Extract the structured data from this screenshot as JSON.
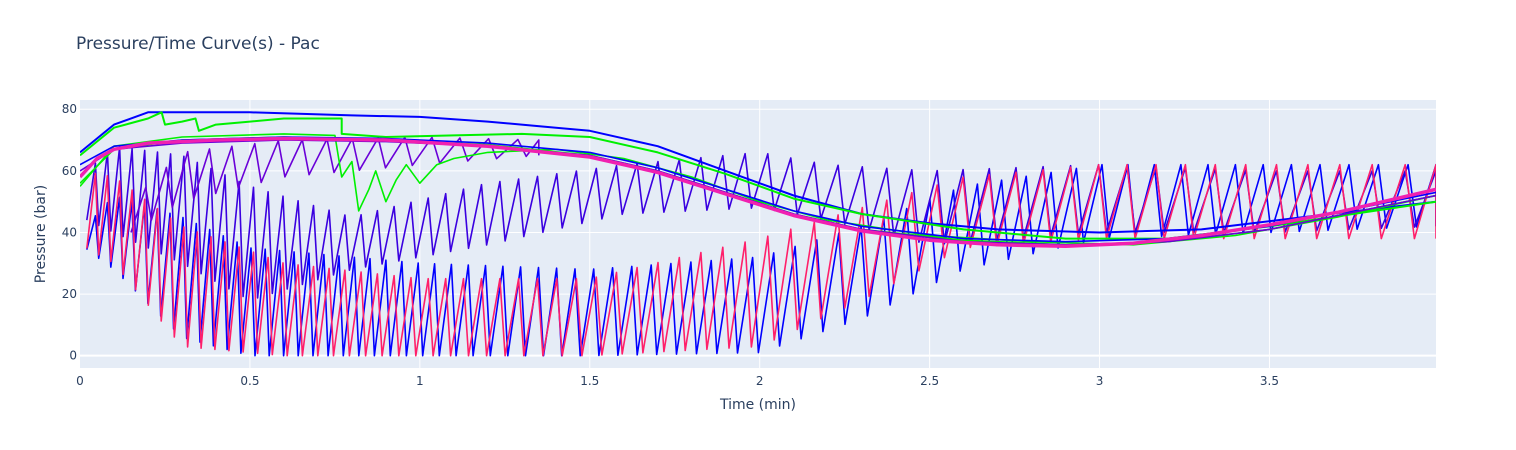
{
  "chart_data": {
    "type": "line",
    "title": "Pressure/Time Curve(s) - Pac",
    "xlabel": "Time (min)",
    "ylabel": "Pressure (bar)",
    "xlim": [
      0,
      3.99
    ],
    "ylim": [
      -4,
      83
    ],
    "xticks": [
      0,
      0.5,
      1,
      1.5,
      2,
      2.5,
      3,
      3.5
    ],
    "xtick_labels": [
      "0",
      "0.5",
      "1",
      "1.5",
      "2",
      "2.5",
      "3",
      "3.5"
    ],
    "yticks": [
      0,
      20,
      40,
      60,
      80
    ],
    "ytick_labels": [
      "0",
      "20",
      "40",
      "60",
      "80"
    ],
    "grid": true,
    "legend": "none",
    "colors": {
      "plot_bg": "#e5ecf6",
      "grid": "#ffffff",
      "text": "#2a3f5f",
      "blue": "#0000ff",
      "indigo": "#3a00e0",
      "violet": "#6a00d8",
      "green": "#00f000",
      "pink": "#ff1f6a",
      "magenta": "#f021b0"
    },
    "series": [
      {
        "color": "#0000ff",
        "width": 2,
        "points": [
          [
            0,
            66
          ],
          [
            0.1,
            75
          ],
          [
            0.2,
            79
          ],
          [
            0.5,
            79
          ],
          [
            0.8,
            78
          ],
          [
            1.0,
            77.5
          ],
          [
            1.2,
            76
          ],
          [
            1.5,
            73
          ],
          [
            1.7,
            68
          ],
          [
            1.9,
            60
          ],
          [
            2.1,
            52
          ],
          [
            2.3,
            46
          ],
          [
            2.5,
            43
          ],
          [
            2.7,
            41
          ],
          [
            3.0,
            40
          ],
          [
            3.3,
            41
          ],
          [
            3.6,
            45
          ],
          [
            3.99,
            50
          ]
        ]
      },
      {
        "color": "#00f000",
        "width": 2,
        "points": [
          [
            0,
            65
          ],
          [
            0.1,
            74
          ],
          [
            0.2,
            77
          ],
          [
            0.24,
            79
          ],
          [
            0.25,
            75
          ],
          [
            0.3,
            76
          ],
          [
            0.34,
            77
          ],
          [
            0.35,
            73
          ],
          [
            0.4,
            75
          ],
          [
            0.5,
            76
          ],
          [
            0.6,
            77
          ],
          [
            0.7,
            77
          ],
          [
            0.77,
            77
          ],
          [
            0.77,
            72
          ],
          [
            0.9,
            71
          ],
          [
            1.1,
            71.5
          ],
          [
            1.3,
            72
          ],
          [
            1.5,
            71
          ],
          [
            1.7,
            66
          ],
          [
            1.9,
            59
          ],
          [
            2.1,
            51
          ],
          [
            2.3,
            46
          ],
          [
            2.6,
            41
          ],
          [
            2.9,
            38
          ],
          [
            3.2,
            38
          ],
          [
            3.5,
            42
          ],
          [
            3.99,
            50
          ]
        ]
      },
      {
        "color": "#00f000",
        "width": 1.6,
        "points": [
          [
            0,
            55
          ],
          [
            0.1,
            68
          ],
          [
            0.3,
            71
          ],
          [
            0.6,
            72
          ],
          [
            0.75,
            71.5
          ],
          [
            0.77,
            58
          ],
          [
            0.8,
            63
          ],
          [
            0.82,
            47
          ],
          [
            0.85,
            54
          ],
          [
            0.87,
            60
          ],
          [
            0.9,
            50
          ],
          [
            0.93,
            57
          ],
          [
            0.96,
            62
          ],
          [
            1.0,
            56
          ],
          [
            1.05,
            62
          ],
          [
            1.1,
            64
          ],
          [
            1.2,
            66
          ],
          [
            1.4,
            67
          ],
          [
            1.6,
            64
          ],
          [
            1.8,
            58
          ],
          [
            2.0,
            50
          ],
          [
            2.2,
            44
          ],
          [
            2.5,
            39
          ],
          [
            2.8,
            37
          ],
          [
            3.1,
            36
          ],
          [
            3.4,
            39
          ],
          [
            3.7,
            45
          ],
          [
            3.99,
            52
          ]
        ]
      },
      {
        "color": "#00f000",
        "width": 1.6,
        "points": [
          [
            0,
            56
          ],
          [
            0.1,
            67
          ],
          [
            0.3,
            70
          ],
          [
            0.6,
            71
          ],
          [
            0.9,
            70
          ],
          [
            1.2,
            68.5
          ],
          [
            1.5,
            65
          ],
          [
            1.7,
            60
          ],
          [
            1.9,
            53
          ],
          [
            2.1,
            46
          ],
          [
            2.3,
            41
          ],
          [
            2.6,
            37.5
          ],
          [
            2.9,
            36
          ],
          [
            3.2,
            37
          ],
          [
            3.5,
            41
          ],
          [
            3.99,
            52
          ]
        ]
      },
      {
        "color": "#0000ff",
        "width": 1.6,
        "points": [
          [
            0,
            62
          ],
          [
            0.1,
            68
          ],
          [
            0.3,
            70
          ],
          [
            0.6,
            71
          ],
          [
            0.9,
            70.5
          ],
          [
            1.2,
            69
          ],
          [
            1.5,
            66
          ],
          [
            1.7,
            61
          ],
          [
            1.9,
            54
          ],
          [
            2.1,
            47
          ],
          [
            2.3,
            42
          ],
          [
            2.6,
            38
          ],
          [
            2.9,
            37
          ],
          [
            3.2,
            38
          ],
          [
            3.5,
            42
          ],
          [
            3.99,
            53
          ]
        ]
      },
      {
        "color": "#6a00d8",
        "width": 1.6,
        "points": [
          [
            0,
            60
          ],
          [
            0.1,
            67
          ],
          [
            0.3,
            69
          ],
          [
            0.6,
            70
          ],
          [
            0.9,
            69.5
          ],
          [
            1.2,
            68
          ],
          [
            1.5,
            65
          ],
          [
            1.7,
            60
          ],
          [
            1.9,
            53
          ],
          [
            2.1,
            46
          ],
          [
            2.3,
            41
          ],
          [
            2.6,
            37
          ],
          [
            2.9,
            36
          ],
          [
            3.2,
            37
          ],
          [
            3.5,
            41
          ],
          [
            3.99,
            52
          ]
        ]
      },
      {
        "color": "#f021b0",
        "width": 3.5,
        "points": [
          [
            0,
            58
          ],
          [
            0.05,
            64
          ],
          [
            0.1,
            67
          ],
          [
            0.2,
            69
          ],
          [
            0.4,
            70
          ],
          [
            0.6,
            70.5
          ],
          [
            0.9,
            70
          ],
          [
            1.2,
            68
          ],
          [
            1.5,
            64.5
          ],
          [
            1.7,
            59.5
          ],
          [
            1.9,
            52.5
          ],
          [
            2.1,
            45.5
          ],
          [
            2.3,
            40.5
          ],
          [
            2.5,
            37.5
          ],
          [
            2.7,
            36
          ],
          [
            2.9,
            35.5
          ],
          [
            3.1,
            36.5
          ],
          [
            3.3,
            39
          ],
          [
            3.5,
            42.5
          ],
          [
            3.7,
            46.5
          ],
          [
            3.99,
            54
          ]
        ]
      }
    ],
    "oscillating_series": [
      {
        "color": "#0000ff",
        "width": 1.6,
        "start": 0.02,
        "end": 3.99,
        "period_start": 0.035,
        "period_end": 0.09,
        "env": [
          [
            0,
            40,
            36
          ],
          [
            0.1,
            52,
            28
          ],
          [
            0.3,
            45,
            6
          ],
          [
            0.5,
            35,
            0
          ],
          [
            1.0,
            30,
            0
          ],
          [
            1.5,
            28,
            0
          ],
          [
            2.0,
            32,
            1
          ],
          [
            2.3,
            42,
            12
          ],
          [
            2.6,
            55,
            28
          ],
          [
            3.0,
            62,
            38
          ],
          [
            3.5,
            62,
            40
          ],
          [
            3.99,
            62,
            42
          ]
        ]
      },
      {
        "color": "#3a00e0",
        "width": 1.6,
        "start": 0.02,
        "end": 3.99,
        "period_start": 0.035,
        "period_end": 0.1,
        "env": [
          [
            0,
            58,
            45
          ],
          [
            0.1,
            68,
            40
          ],
          [
            0.3,
            65,
            30
          ],
          [
            0.5,
            55,
            18
          ],
          [
            0.8,
            45,
            28
          ],
          [
            1.2,
            56,
            36
          ],
          [
            1.6,
            62,
            46
          ],
          [
            2.0,
            66,
            48
          ],
          [
            2.2,
            62,
            44
          ],
          [
            2.5,
            60,
            36
          ],
          [
            3.0,
            62,
            40
          ],
          [
            3.5,
            60,
            40
          ],
          [
            3.99,
            60,
            42
          ]
        ]
      },
      {
        "color": "#6a00d8",
        "width": 1.6,
        "start": 0.15,
        "end": 1.35,
        "period_start": 0.06,
        "period_end": 0.09,
        "env": [
          [
            0.15,
            50,
            40
          ],
          [
            0.3,
            66,
            50
          ],
          [
            0.6,
            70,
            58
          ],
          [
            1.0,
            71,
            62
          ],
          [
            1.35,
            70,
            65
          ]
        ]
      },
      {
        "color": "#ff1f6a",
        "width": 1.6,
        "start": 0.02,
        "end": 3.99,
        "period_start": 0.035,
        "period_end": 0.1,
        "env": [
          [
            0,
            60,
            36
          ],
          [
            0.1,
            58,
            30
          ],
          [
            0.3,
            42,
            3
          ],
          [
            0.6,
            30,
            0
          ],
          [
            1.0,
            25,
            0
          ],
          [
            1.5,
            25,
            0
          ],
          [
            2.0,
            38,
            3
          ],
          [
            2.3,
            48,
            18
          ],
          [
            2.6,
            58,
            35
          ],
          [
            3.0,
            62,
            38
          ],
          [
            3.5,
            62,
            38
          ],
          [
            3.99,
            62,
            38
          ]
        ]
      }
    ]
  }
}
